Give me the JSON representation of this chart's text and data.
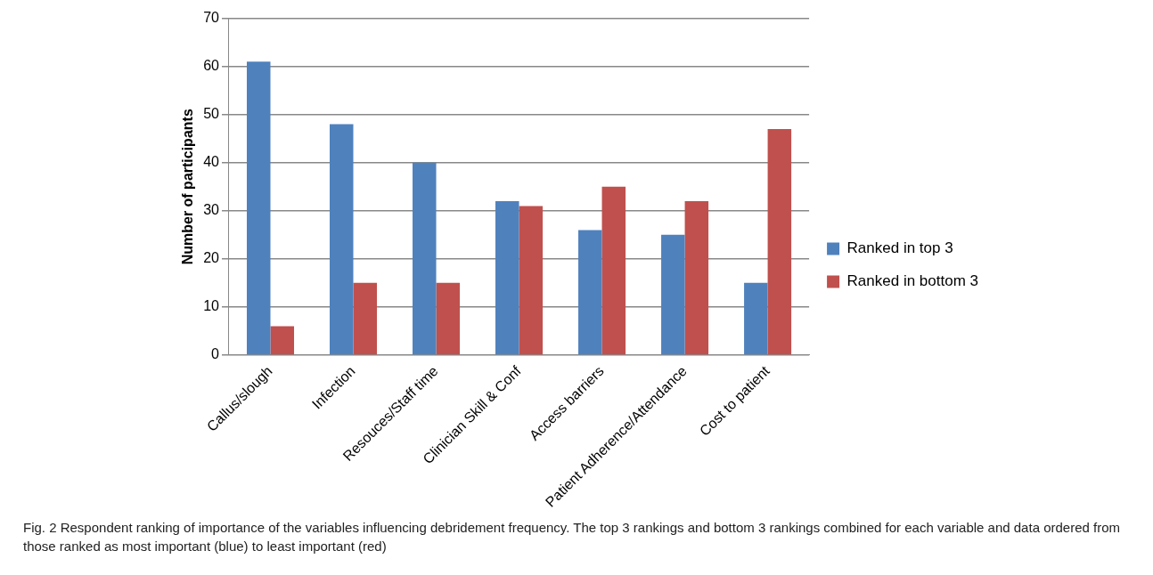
{
  "chart_data": {
    "type": "bar",
    "ylabel": "Number of participants",
    "categories": [
      "Callus/slough",
      "Infection",
      "Resouces/Staff time",
      "Clinician Skill & Conf",
      "Access barriers",
      "Patient Adherence/Attendance",
      "Cost to patient"
    ],
    "series": [
      {
        "name": "Ranked in top 3",
        "color": "#4f81bd",
        "values": [
          61,
          48,
          40,
          32,
          26,
          25,
          15
        ]
      },
      {
        "name": "Ranked in bottom 3",
        "color": "#c0504d",
        "values": [
          6,
          15,
          15,
          31,
          35,
          32,
          47
        ]
      }
    ],
    "ylim": [
      0,
      70
    ],
    "yticks": [
      0,
      10,
      20,
      30,
      40,
      50,
      60,
      70
    ],
    "grid": "y",
    "legend": "right",
    "annotations": [
      "Fig. 2 Respondent ranking of importance of the variables influencing debridement frequency. The top 3 rankings and bottom 3 rankings combined for each variable and data ordered from those ranked as most important (blue) to least important (red)"
    ]
  }
}
